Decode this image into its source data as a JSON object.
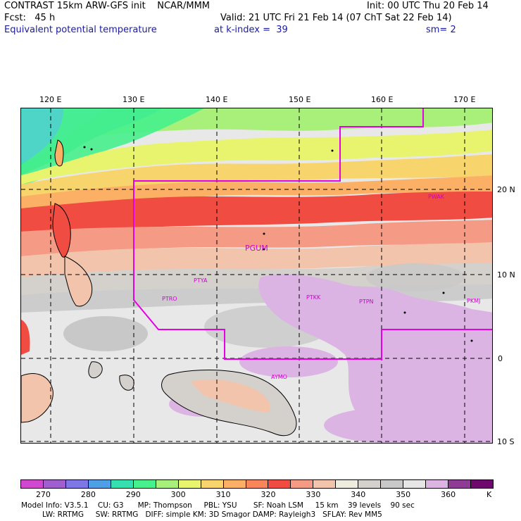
{
  "header": {
    "title": "CONTRAST 15km ARW-GFS init    NCAR/MMM",
    "init": "Init: 00 UTC Thu 20 Feb 14",
    "fcst": "Fcst:   45 h",
    "valid": "Valid: 21 UTC Fri 21 Feb 14 (07 ChT Sat 22 Feb 14)",
    "field": "Equivalent potential temperature",
    "level": "at k-index =  39",
    "smooth": "sm= 2"
  },
  "axes": {
    "lon_labels": [
      "120 E",
      "130 E",
      "140 E",
      "150 E",
      "160 E",
      "170 E"
    ],
    "lat_labels": [
      "20 N",
      "10 N",
      "0",
      "10 S"
    ]
  },
  "stations": [
    {
      "id": "PWAK",
      "label": "PWAK"
    },
    {
      "id": "PGUM",
      "label": "PGUM"
    },
    {
      "id": "PTYA",
      "label": "PTYA"
    },
    {
      "id": "PTRO",
      "label": "PTRO"
    },
    {
      "id": "PTKK",
      "label": "PTKK"
    },
    {
      "id": "PTPN",
      "label": "PTPN"
    },
    {
      "id": "PKMJ",
      "label": "PKMJ"
    },
    {
      "id": "AYMO",
      "label": "AYMO"
    }
  ],
  "colorbar": {
    "unit": "K",
    "labels": [
      "270",
      "280",
      "290",
      "300",
      "310",
      "320",
      "330",
      "340",
      "350",
      "360"
    ],
    "colors": [
      "#cf48cf",
      "#9f5fcf",
      "#7f77e6",
      "#4f9fe6",
      "#35e0b0",
      "#46f08c",
      "#a8f07a",
      "#e8f46e",
      "#f8d56c",
      "#fbb065",
      "#f8865a",
      "#f04c42",
      "#f59a84",
      "#f3c4ac",
      "#ececdf",
      "#d4d0cc",
      "#c8c8c8",
      "#e6e6e6",
      "#dcb4e4",
      "#8e3c96",
      "#6e0a6e"
    ]
  },
  "footer": {
    "line1": "Model Info: V3.5.1    CU: G3      MP: Thompson     PBL: YSU       SF: Noah LSM     15 km    39 levels    90 sec",
    "line2": "         LW: RRTMG     SW: RRTMG   DIFF: simple KM: 3D Smagor DAMP: Rayleigh3   SFLAY: Rev MM5"
  }
}
